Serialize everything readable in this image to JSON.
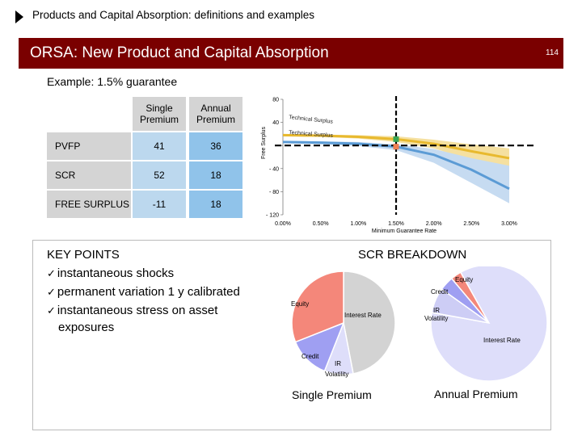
{
  "header": {
    "section_title": "Products and Capital Absorption: definitions and examples",
    "banner_title": "ORSA: New Product and Capital Absorption",
    "page_number": "114",
    "colors": {
      "banner": "#7a0000",
      "text_on_banner": "#ffffff"
    }
  },
  "example_label": "Example: 1.5% guarantee",
  "table": {
    "columns": [
      "Single Premium",
      "Annual Premium"
    ],
    "rows": [
      {
        "label": "PVFP",
        "single": "41",
        "annual": "36"
      },
      {
        "label": "SCR",
        "single": "52",
        "annual": "18"
      },
      {
        "label": "FREE SURPLUS",
        "single": "-11",
        "annual": "18"
      }
    ],
    "colors": {
      "header": "#d4d4d4",
      "single_col": "#bcd8ee",
      "annual_col": "#90c3ea"
    }
  },
  "chart_data": [
    {
      "type": "line",
      "xlabel": "Minimum Guarantee Rate",
      "ylabel": "Free Surplus",
      "x_ticks": [
        "0.00%",
        "0.50%",
        "1.00%",
        "1.50%",
        "2.00%",
        "2.50%",
        "3.00%"
      ],
      "y_ticks": [
        "80",
        "40",
        "-",
        "- 40",
        "- 80",
        "- 120"
      ],
      "xlim": [
        0,
        3.0
      ],
      "ylim": [
        -120,
        80
      ],
      "annotations": [
        "Technical Surplus",
        "Technical Surplus"
      ],
      "series": [
        {
          "color": "#e8b92e",
          "x": [
            0,
            0.5,
            1.0,
            1.5,
            2.0,
            2.5,
            3.0
          ],
          "y": [
            18,
            17,
            15,
            11,
            3,
            -10,
            -22
          ]
        },
        {
          "color": "#5b9bd5",
          "x": [
            0,
            0.5,
            1.0,
            1.5,
            2.0,
            2.5,
            3.0
          ],
          "y": [
            6,
            5,
            3,
            -2,
            -16,
            -42,
            -75
          ]
        }
      ],
      "bands": [
        {
          "color": "#f5e0a0",
          "upper": [
            20,
            19,
            18,
            16,
            10,
            2,
            -5
          ],
          "lower": [
            16,
            15,
            12,
            6,
            -5,
            -25,
            -45
          ]
        },
        {
          "color": "#c6dbf1",
          "upper": [
            8,
            7,
            6,
            2,
            -6,
            -22,
            -35
          ],
          "lower": [
            4,
            2,
            -1,
            -8,
            -30,
            -65,
            -100
          ]
        }
      ],
      "markers": [
        {
          "x": 1.5,
          "y": 11,
          "color": "#3aa655"
        },
        {
          "x": 1.5,
          "y": -2,
          "color": "#f07f52"
        }
      ],
      "reference_lines": [
        {
          "kind": "vertical",
          "x": 1.5,
          "style": "dashed",
          "color": "#000000"
        },
        {
          "kind": "horizontal",
          "y": 0,
          "style": "dashed",
          "color": "#000000"
        }
      ]
    },
    {
      "type": "pie",
      "title": "Single Premium",
      "labels": [
        "Interest Rate",
        "Equity",
        "Credit",
        "IR Volatility"
      ],
      "values": [
        47,
        31,
        13,
        9
      ],
      "colors": [
        "#d3d3d3",
        "#f4877a",
        "#9f9ff2",
        "#dedefa"
      ]
    },
    {
      "type": "pie",
      "title": "Annual Premium",
      "labels": [
        "Interest Rate",
        "Equity",
        "Credit",
        "IR Volatility"
      ],
      "values": [
        86,
        3,
        4,
        7
      ],
      "colors": [
        "#dedefa",
        "#f4877a",
        "#9f9ff2",
        "#cdcdf5"
      ]
    }
  ],
  "key_points": {
    "title": "KEY POINTS",
    "items": [
      "instantaneous shocks",
      "permanent variation 1 y calibrated",
      "instantaneous stress on asset"
    ],
    "continuation": "exposures"
  },
  "scr_breakdown": {
    "title": "SCR BREAKDOWN",
    "single_caption": "Single Premium",
    "annual_caption": "Annual Premium",
    "single_labels": {
      "interest_rate": "Interest Rate",
      "equity": "Equity",
      "credit": "Credit",
      "ir": "IR",
      "volatility": "Volatility"
    },
    "annual_labels": {
      "interest_rate": "Interest Rate",
      "equity": "Equity",
      "credit": "Credit",
      "ir": "IR",
      "volatility": "Volatility"
    }
  }
}
